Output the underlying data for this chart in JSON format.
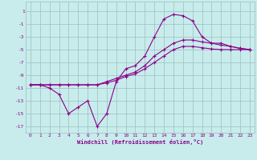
{
  "xlabel": "Windchill (Refroidissement éolien,°C)",
  "bg_color": "#c8ecec",
  "grid_color": "#9bbfbf",
  "line_color": "#8b008b",
  "xlim": [
    -0.5,
    23.5
  ],
  "ylim": [
    -18,
    2.5
  ],
  "xticks": [
    0,
    1,
    2,
    3,
    4,
    5,
    6,
    7,
    8,
    9,
    10,
    11,
    12,
    13,
    14,
    15,
    16,
    17,
    18,
    19,
    20,
    21,
    22,
    23
  ],
  "yticks": [
    1,
    -1,
    -3,
    -5,
    -7,
    -9,
    -11,
    -13,
    -15,
    -17
  ],
  "line1_x": [
    0,
    1,
    2,
    3,
    4,
    5,
    6,
    7,
    8,
    9,
    10,
    11,
    12,
    13,
    14,
    15,
    16,
    17,
    18,
    19,
    20,
    21,
    22,
    23
  ],
  "line1_y": [
    -10.5,
    -10.5,
    -11,
    -12,
    -15,
    -14,
    -13,
    -17,
    -15,
    -10,
    -8,
    -7.5,
    -6,
    -3,
    -0.2,
    0.5,
    0.3,
    -0.5,
    -3,
    -4,
    -4,
    -4.5,
    -4.8,
    -5
  ],
  "line2_x": [
    0,
    1,
    2,
    3,
    4,
    5,
    6,
    7,
    8,
    9,
    10,
    11,
    12,
    13,
    14,
    15,
    16,
    17,
    18,
    19,
    20,
    21,
    22,
    23
  ],
  "line2_y": [
    -10.5,
    -10.5,
    -10.5,
    -10.5,
    -10.5,
    -10.5,
    -10.5,
    -10.5,
    -10,
    -9.5,
    -9,
    -8.5,
    -7.5,
    -6.0,
    -5.0,
    -4.0,
    -3.5,
    -3.5,
    -3.8,
    -4.0,
    -4.3,
    -4.5,
    -4.8,
    -5.0
  ],
  "line3_x": [
    0,
    1,
    2,
    3,
    4,
    5,
    6,
    7,
    8,
    9,
    10,
    11,
    12,
    13,
    14,
    15,
    16,
    17,
    18,
    19,
    20,
    21,
    22,
    23
  ],
  "line3_y": [
    -10.5,
    -10.5,
    -10.5,
    -10.5,
    -10.5,
    -10.5,
    -10.5,
    -10.5,
    -10.2,
    -9.8,
    -9.2,
    -8.8,
    -8.0,
    -7.0,
    -6.0,
    -5.0,
    -4.5,
    -4.5,
    -4.7,
    -4.9,
    -5.0,
    -5.0,
    -5.0,
    -5.0
  ]
}
